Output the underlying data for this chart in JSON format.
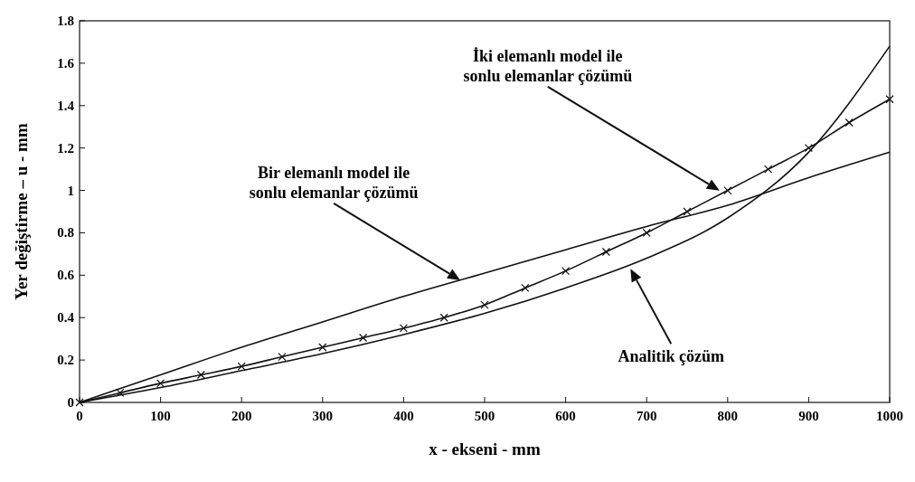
{
  "chart_data": {
    "type": "line",
    "xlabel": "x - ekseni - mm",
    "ylabel": "Yer değiştirme – u - mm",
    "xlim": [
      0,
      1000
    ],
    "xticks": [
      0,
      100,
      200,
      300,
      400,
      500,
      600,
      700,
      800,
      900,
      1000
    ],
    "ylim": [
      0,
      1.8
    ],
    "yticks": [
      0,
      0.2,
      0.4,
      0.6,
      0.8,
      1,
      1.2,
      1.4,
      1.6,
      1.8
    ],
    "grid": false,
    "series": [
      {
        "color": "#111111",
        "marker": "none",
        "x": [
          0,
          100,
          200,
          300,
          400,
          500,
          600,
          700,
          800,
          900,
          1000
        ],
        "values": [
          0,
          0.13,
          0.26,
          0.38,
          0.5,
          0.61,
          0.72,
          0.83,
          0.93,
          1.06,
          1.18
        ]
      },
      {
        "color": "#111111",
        "marker": "none",
        "x": [
          0,
          100,
          200,
          300,
          400,
          500,
          600,
          700,
          800,
          900,
          1000
        ],
        "values": [
          0,
          0.07,
          0.15,
          0.23,
          0.32,
          0.42,
          0.54,
          0.68,
          0.87,
          1.18,
          1.68
        ]
      },
      {
        "color": "#111111",
        "marker": "cross",
        "x": [
          0,
          50,
          100,
          150,
          200,
          250,
          300,
          350,
          400,
          450,
          500,
          550,
          600,
          650,
          700,
          750,
          800,
          850,
          900,
          950,
          1000
        ],
        "values": [
          0,
          0.045,
          0.09,
          0.13,
          0.17,
          0.215,
          0.26,
          0.305,
          0.35,
          0.4,
          0.46,
          0.54,
          0.62,
          0.71,
          0.8,
          0.9,
          1.0,
          1.1,
          1.2,
          1.32,
          1.43
        ]
      }
    ],
    "annotations": [
      "Bir elemanlı model ile sonlu elemanlar çözümü",
      "İki elemanlı model ile sonlu elemanlar çözümü",
      "Analitik çözüm"
    ]
  }
}
